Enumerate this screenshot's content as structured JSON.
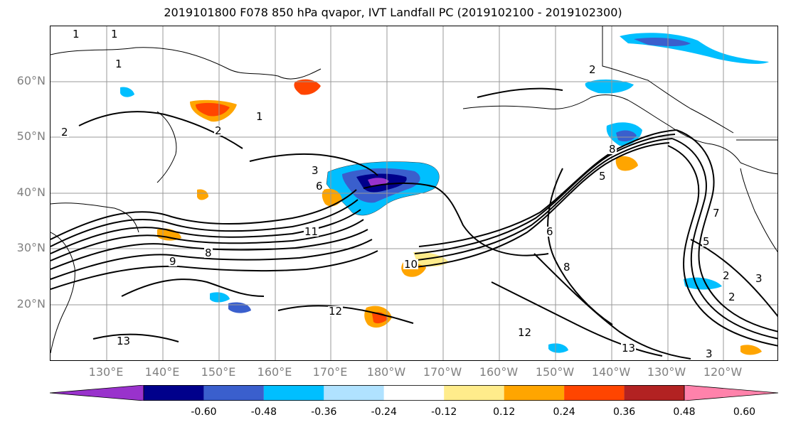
{
  "title": "2019101800 F078 850 hPa qvapor, IVT Landfall PC (2019102100 - 2019102300)",
  "lat_labels": [
    "60°N",
    "50°N",
    "40°N",
    "30°N",
    "20°N"
  ],
  "lon_labels": [
    "130°E",
    "140°E",
    "150°E",
    "160°E",
    "170°E",
    "180°W",
    "170°W",
    "160°W",
    "150°W",
    "140°W",
    "130°W",
    "120°W"
  ],
  "colorbar": {
    "colors": [
      "#9932cc",
      "#00008b",
      "#3a5fcd",
      "#00bfff",
      "#b0e2ff",
      "#ffffff",
      "#ffec8b",
      "#ffa500",
      "#ff4500",
      "#b22222",
      "#ff82ab"
    ],
    "tick_labels": [
      "-0.60",
      "-0.48",
      "-0.36",
      "-0.24",
      "-0.12",
      "0.12",
      "0.24",
      "0.36",
      "0.48",
      "0.60"
    ]
  },
  "contour_labels": [
    "1",
    "1",
    "1",
    "1",
    "2",
    "2",
    "2",
    "3",
    "6",
    "11",
    "8",
    "10",
    "12",
    "13",
    "9",
    "6",
    "8",
    "5",
    "5",
    "2",
    "2",
    "3",
    "12",
    "13",
    "7",
    "8",
    "3"
  ]
}
